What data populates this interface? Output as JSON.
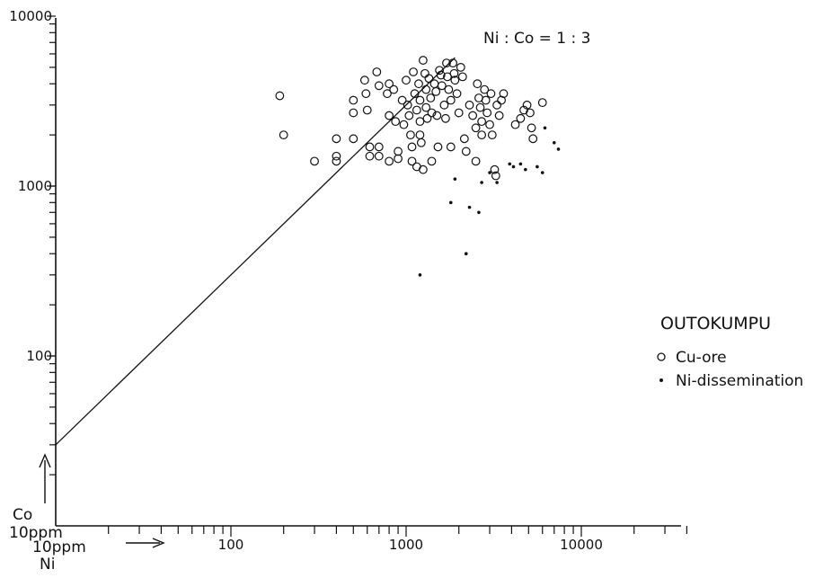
{
  "chart_data": {
    "type": "scatter",
    "title": "OUTOKUMPU",
    "xlabel": "Ni",
    "ylabel": "Co",
    "x_unit_label": "10ppm",
    "y_unit_label": "10ppm",
    "x_scale": "log",
    "y_scale": "log",
    "xlim": [
      10,
      40000
    ],
    "ylim": [
      10,
      10000
    ],
    "x_ticks": [
      "100",
      "1000",
      "10000"
    ],
    "y_ticks": [
      "100",
      "1000",
      "10000"
    ],
    "grid": false,
    "legend_position": "right",
    "reference_line": {
      "label": "Ni : Co = 1 : 3",
      "slope_log": 1,
      "points": [
        [
          10,
          30
        ],
        [
          1900,
          5700
        ]
      ]
    },
    "series": [
      {
        "name": "Cu-ore",
        "marker": "open-circle",
        "points": [
          [
            190,
            3400
          ],
          [
            200,
            2000
          ],
          [
            300,
            1400
          ],
          [
            400,
            1900
          ],
          [
            400,
            1500
          ],
          [
            400,
            1400
          ],
          [
            500,
            3200
          ],
          [
            500,
            2700
          ],
          [
            500,
            1900
          ],
          [
            580,
            4200
          ],
          [
            590,
            3500
          ],
          [
            600,
            2800
          ],
          [
            620,
            1700
          ],
          [
            620,
            1500
          ],
          [
            680,
            4700
          ],
          [
            700,
            3900
          ],
          [
            700,
            1700
          ],
          [
            700,
            1500
          ],
          [
            780,
            3500
          ],
          [
            800,
            4000
          ],
          [
            800,
            2600
          ],
          [
            800,
            1400
          ],
          [
            850,
            3700
          ],
          [
            870,
            2400
          ],
          [
            900,
            1600
          ],
          [
            900,
            1450
          ],
          [
            950,
            3200
          ],
          [
            970,
            2300
          ],
          [
            1000,
            4200
          ],
          [
            1020,
            3000
          ],
          [
            1040,
            2600
          ],
          [
            1060,
            2000
          ],
          [
            1080,
            1700
          ],
          [
            1080,
            1400
          ],
          [
            1100,
            4700
          ],
          [
            1120,
            3500
          ],
          [
            1150,
            2800
          ],
          [
            1150,
            1300
          ],
          [
            1180,
            4000
          ],
          [
            1200,
            3200
          ],
          [
            1200,
            2400
          ],
          [
            1200,
            2000
          ],
          [
            1220,
            1800
          ],
          [
            1250,
            5500
          ],
          [
            1250,
            1250
          ],
          [
            1280,
            4600
          ],
          [
            1300,
            3700
          ],
          [
            1300,
            2900
          ],
          [
            1320,
            2500
          ],
          [
            1350,
            4300
          ],
          [
            1380,
            3300
          ],
          [
            1400,
            2700
          ],
          [
            1400,
            1400
          ],
          [
            1450,
            4000
          ],
          [
            1480,
            3600
          ],
          [
            1500,
            2600
          ],
          [
            1520,
            1700
          ],
          [
            1550,
            4800
          ],
          [
            1580,
            4500
          ],
          [
            1600,
            3900
          ],
          [
            1650,
            3000
          ],
          [
            1680,
            2500
          ],
          [
            1700,
            5300
          ],
          [
            1720,
            4400
          ],
          [
            1750,
            3700
          ],
          [
            1800,
            3200
          ],
          [
            1800,
            1700
          ],
          [
            1850,
            5300
          ],
          [
            1880,
            4600
          ],
          [
            1900,
            4200
          ],
          [
            1950,
            3500
          ],
          [
            2000,
            2700
          ],
          [
            2050,
            5000
          ],
          [
            2100,
            4400
          ],
          [
            2150,
            1900
          ],
          [
            2200,
            1600
          ],
          [
            2300,
            3000
          ],
          [
            2400,
            2600
          ],
          [
            2500,
            2200
          ],
          [
            2500,
            1400
          ],
          [
            2550,
            4000
          ],
          [
            2600,
            3300
          ],
          [
            2650,
            2900
          ],
          [
            2700,
            2400
          ],
          [
            2700,
            2000
          ],
          [
            2800,
            3700
          ],
          [
            2850,
            3200
          ],
          [
            2900,
            2700
          ],
          [
            3000,
            2300
          ],
          [
            3050,
            3500
          ],
          [
            3100,
            2000
          ],
          [
            3200,
            1250
          ],
          [
            3250,
            1150
          ],
          [
            3300,
            3000
          ],
          [
            3400,
            2600
          ],
          [
            3500,
            3200
          ],
          [
            3600,
            3500
          ],
          [
            4200,
            2300
          ],
          [
            4500,
            2500
          ],
          [
            4700,
            2800
          ],
          [
            4900,
            3000
          ],
          [
            5100,
            2700
          ],
          [
            5200,
            2200
          ],
          [
            5300,
            1900
          ],
          [
            6000,
            3100
          ]
        ]
      },
      {
        "name": "Ni-dissemination",
        "marker": "dot",
        "points": [
          [
            1200,
            300
          ],
          [
            2200,
            400
          ],
          [
            1800,
            800
          ],
          [
            2300,
            750
          ],
          [
            2600,
            700
          ],
          [
            1900,
            1100
          ],
          [
            2700,
            1050
          ],
          [
            3300,
            1050
          ],
          [
            3000,
            1200
          ],
          [
            3900,
            1350
          ],
          [
            4100,
            1300
          ],
          [
            4500,
            1350
          ],
          [
            4800,
            1250
          ],
          [
            5600,
            1300
          ],
          [
            6000,
            1200
          ],
          [
            6200,
            2200
          ],
          [
            7000,
            1800
          ],
          [
            7400,
            1650
          ]
        ]
      }
    ]
  }
}
